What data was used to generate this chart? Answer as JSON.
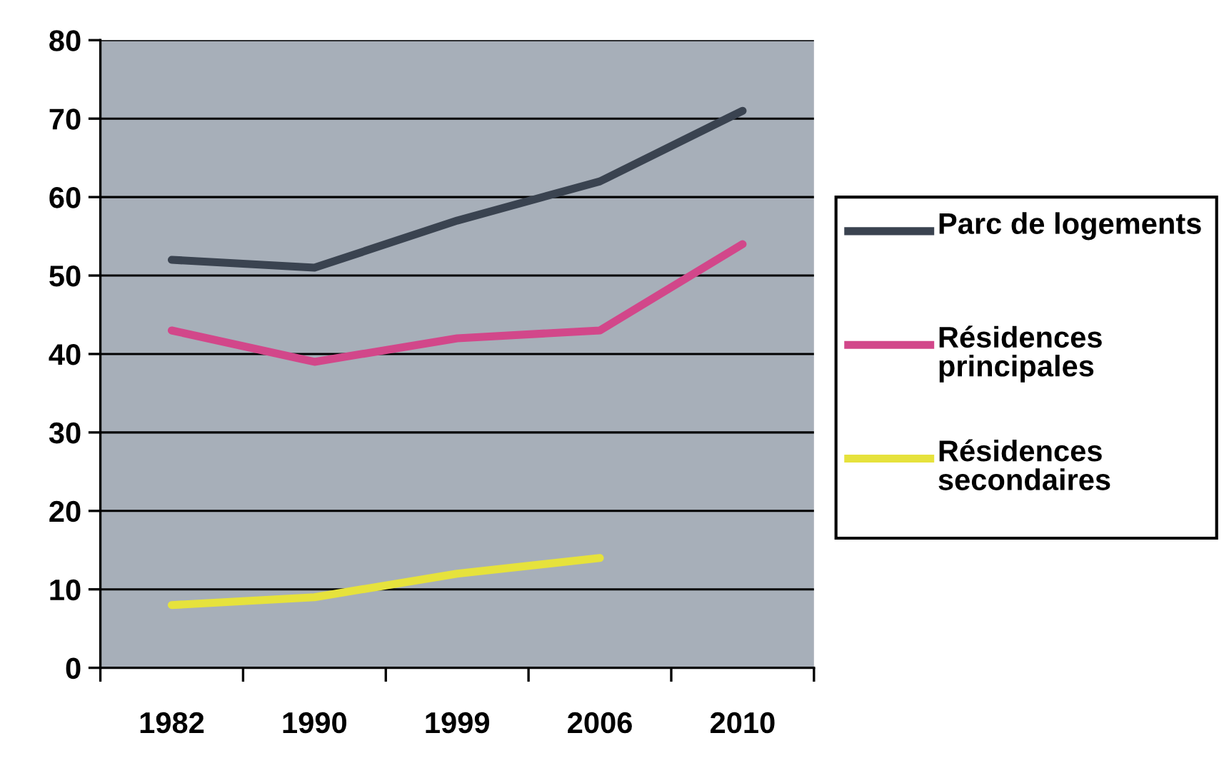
{
  "chart_data": {
    "type": "line",
    "categories": [
      "1982",
      "1990",
      "1999",
      "2006",
      "2010"
    ],
    "series": [
      {
        "name": "Parc de logements",
        "color": "#3a4350",
        "values": [
          52,
          51,
          57,
          62,
          71
        ]
      },
      {
        "name": "Résidences principales",
        "color": "#d2478a",
        "values": [
          43,
          39,
          42,
          43,
          54
        ]
      },
      {
        "name": "Résidences secondaires",
        "color": "#e6e23c",
        "values": [
          8,
          9,
          12,
          14,
          null
        ]
      }
    ],
    "ylim": [
      0,
      80
    ],
    "yticks": [
      0,
      10,
      20,
      30,
      40,
      50,
      60,
      70,
      80
    ],
    "grid": "y",
    "legend": "right",
    "marker": "none",
    "line_style": "solid"
  }
}
